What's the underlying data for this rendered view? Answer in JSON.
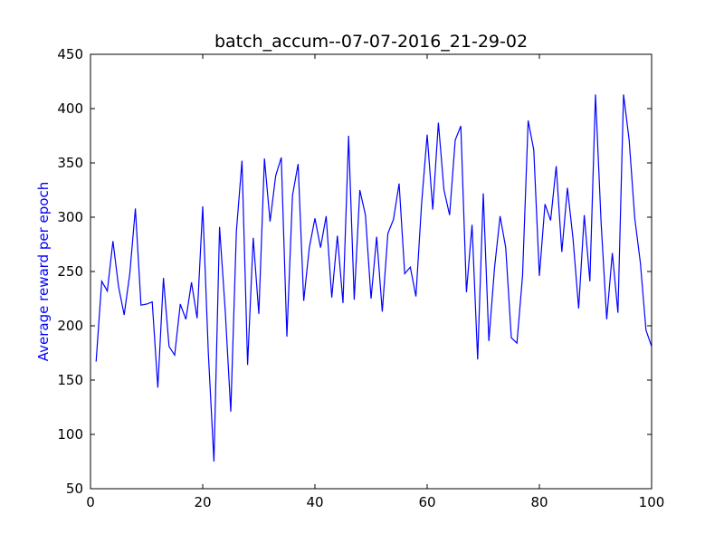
{
  "chart_data": {
    "type": "line",
    "title": "batch_accum--07-07-2016_21-29-02",
    "xlabel": "",
    "ylabel": "Average reward per epoch",
    "xlim": [
      0,
      100
    ],
    "ylim": [
      50,
      450
    ],
    "xticks": [
      0,
      20,
      40,
      60,
      80,
      100
    ],
    "yticks": [
      50,
      100,
      150,
      200,
      250,
      300,
      350,
      400,
      450
    ],
    "grid": false,
    "line_color": "#0000ff",
    "ylabel_color": "#0000ff",
    "series": [
      {
        "x": [
          1,
          2,
          3,
          4,
          5,
          6,
          7,
          8,
          9,
          10,
          11,
          12,
          13,
          14,
          15,
          16,
          17,
          18,
          19,
          20,
          21,
          22,
          23,
          24,
          25,
          26,
          27,
          28,
          29,
          30,
          31,
          32,
          33,
          34,
          35,
          36,
          37,
          38,
          39,
          40,
          41,
          42,
          43,
          44,
          45,
          46,
          47,
          48,
          49,
          50,
          51,
          52,
          53,
          54,
          55,
          56,
          57,
          58,
          59,
          60,
          61,
          62,
          63,
          64,
          65,
          66,
          67,
          68,
          69,
          70,
          71,
          72,
          73,
          74,
          75,
          76,
          77,
          78,
          79,
          80,
          81,
          82,
          83,
          84,
          85,
          86,
          87,
          88,
          89,
          90,
          91,
          92,
          93,
          94,
          95,
          96,
          97,
          98,
          99,
          100
        ],
        "y": [
          167,
          241,
          232,
          278,
          236,
          210,
          248,
          308,
          219,
          220,
          222,
          143,
          244,
          181,
          173,
          220,
          206,
          240,
          207,
          310,
          175,
          75,
          291,
          215,
          121,
          287,
          352,
          164,
          281,
          211,
          354,
          296,
          338,
          355,
          190,
          320,
          349,
          223,
          272,
          299,
          272,
          301,
          226,
          283,
          221,
          375,
          224,
          325,
          302,
          225,
          282,
          213,
          285,
          298,
          331,
          248,
          254,
          227,
          312,
          376,
          307,
          387,
          325,
          302,
          371,
          384,
          231,
          293,
          169,
          322,
          186,
          253,
          301,
          272,
          189,
          184,
          246,
          389,
          362,
          246,
          312,
          297,
          347,
          268,
          327,
          280,
          216,
          302,
          241,
          413,
          295,
          206,
          267,
          212,
          413,
          371,
          299,
          258,
          196,
          181
        ]
      }
    ]
  }
}
